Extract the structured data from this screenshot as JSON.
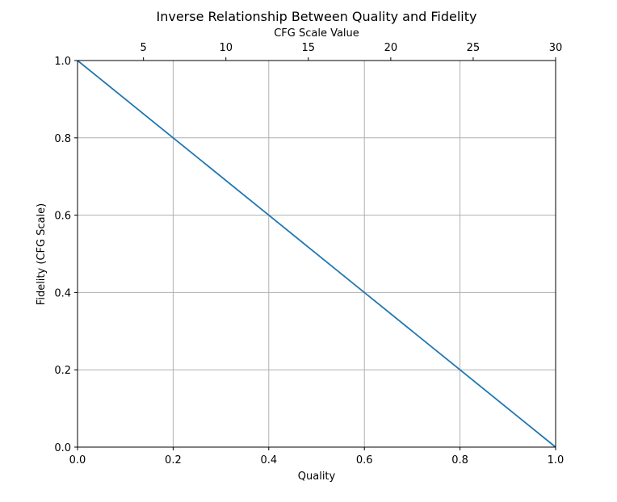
{
  "chart_data": {
    "type": "line",
    "title": "Inverse Relationship Between Quality and Fidelity",
    "xlabel": "Quality",
    "ylabel": "Fidelity (CFG Scale)",
    "secondary_xlabel": "CFG Scale Value",
    "xlim": [
      0.0,
      1.0
    ],
    "ylim": [
      0.0,
      1.0
    ],
    "secondary_xlim": [
      1,
      30
    ],
    "grid": true,
    "xticks": [
      "0.0",
      "0.2",
      "0.4",
      "0.6",
      "0.8",
      "1.0"
    ],
    "yticks": [
      "0.0",
      "0.2",
      "0.4",
      "0.6",
      "0.8",
      "1.0"
    ],
    "secondary_xticks": [
      "5",
      "10",
      "15",
      "20",
      "25",
      "30"
    ],
    "series": [
      {
        "color": "#1f77b4",
        "x": [
          0.0,
          0.2,
          0.4,
          0.6,
          0.8,
          1.0
        ],
        "y": [
          1.0,
          0.8,
          0.6,
          0.4,
          0.2,
          0.0
        ]
      }
    ]
  }
}
